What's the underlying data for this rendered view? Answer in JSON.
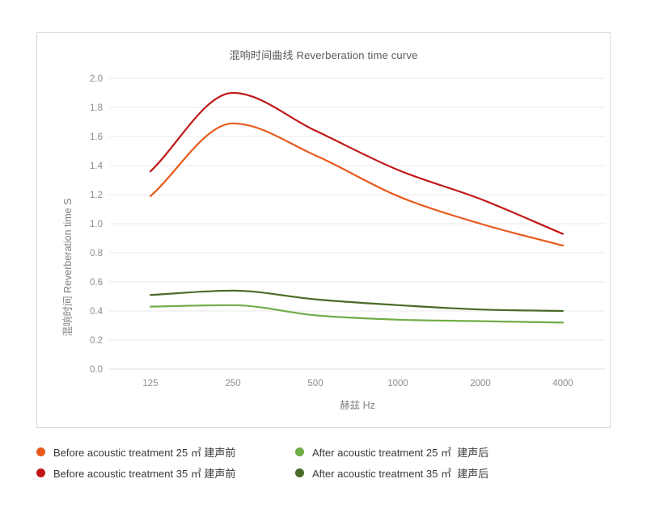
{
  "chart_data": {
    "type": "line",
    "title": "混响时间曲线 Reverberation time curve",
    "xlabel": "赫兹 Hz",
    "ylabel": "混响时间 Reverberation time S",
    "categories": [
      125,
      250,
      500,
      1000,
      2000,
      4000
    ],
    "x_tick_labels": [
      "125",
      "250",
      "500",
      "1000",
      "2000",
      "4000"
    ],
    "y_tick_labels": [
      "0.0",
      "0.2",
      "0.4",
      "0.6",
      "0.8",
      "1.0",
      "1.2",
      "1.4",
      "1.6",
      "1.8",
      "2.0"
    ],
    "ylim": [
      0.0,
      2.0
    ],
    "ytick_step": 0.2,
    "grid": "horizontal-only",
    "legend_position": "bottom",
    "line_style": "smooth",
    "series": [
      {
        "name": "Before acoustic treatment 25 ㎡ 建声前",
        "color": "#E8591B",
        "values": [
          1.19,
          1.69,
          1.47,
          1.19,
          1.0,
          0.85
        ]
      },
      {
        "name": "Before acoustic treatment 35 ㎡ 建声前",
        "color": "#C01818",
        "values": [
          1.36,
          1.9,
          1.64,
          1.37,
          1.17,
          0.93
        ]
      },
      {
        "name": "After acoustic treatment 25 ㎡  建声后",
        "color": "#70AD47",
        "values": [
          0.43,
          0.44,
          0.37,
          0.34,
          0.33,
          0.32
        ]
      },
      {
        "name": "After acoustic treatment 35 ㎡  建声后",
        "color": "#4A6A28",
        "values": [
          0.51,
          0.54,
          0.48,
          0.44,
          0.41,
          0.4
        ]
      }
    ]
  },
  "style": {
    "grid_color": "#e9e9e9",
    "axis_line_color": "#d9d9d9",
    "tick_label_color": "#8c8c8c",
    "axis_title_color": "#7f7f7f",
    "title_color": "#595959"
  }
}
